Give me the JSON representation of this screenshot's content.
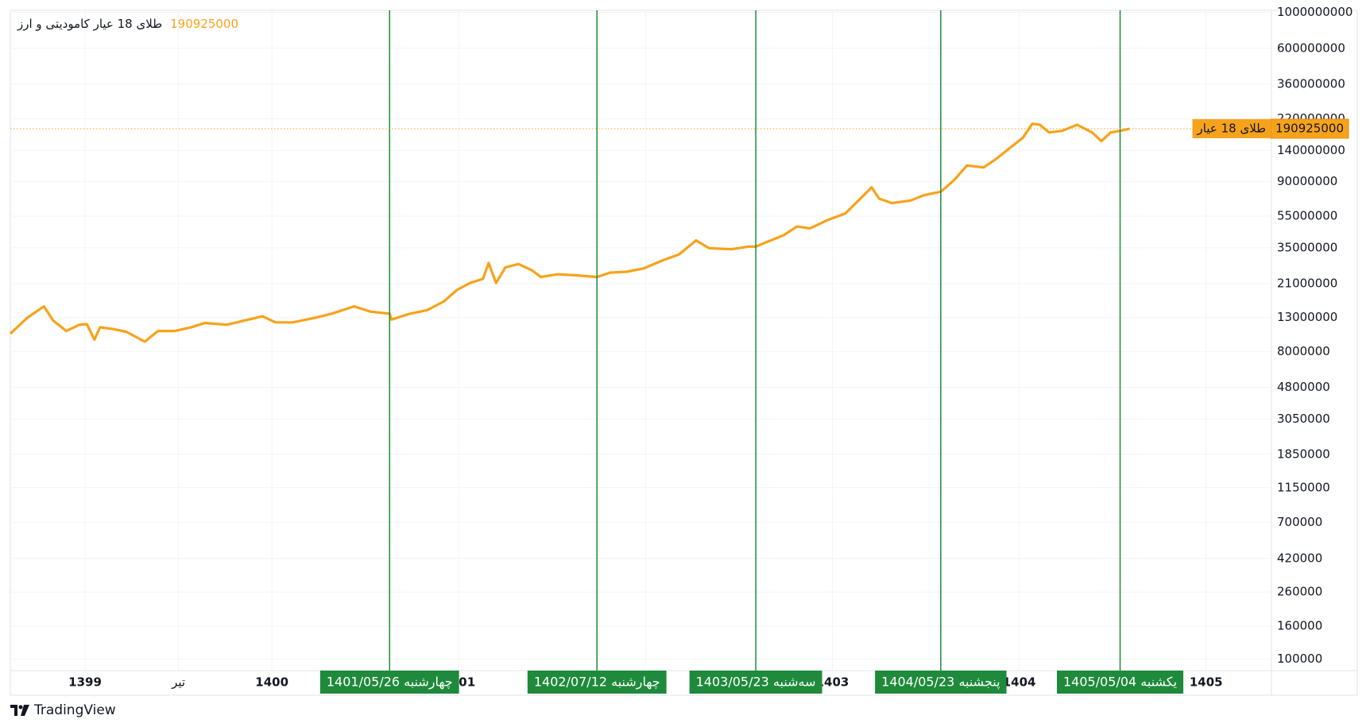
{
  "chart_data": {
    "type": "line",
    "title": "طلای 18 عیار کامودیتی و ارز",
    "log_scale": true,
    "grid": true,
    "x": [
      1398.6,
      1398.69,
      1398.78,
      1398.83,
      1398.9,
      1398.97,
      1399.01,
      1399.05,
      1399.08,
      1399.15,
      1399.22,
      1399.32,
      1399.39,
      1399.48,
      1399.57,
      1399.64,
      1399.76,
      1399.85,
      1399.95,
      1400.02,
      1400.11,
      1400.23,
      1400.32,
      1400.44,
      1400.53,
      1400.63,
      1400.64,
      1400.74,
      1400.83,
      1400.92,
      1400.99,
      1401.06,
      1401.13,
      1401.16,
      1401.2,
      1401.25,
      1401.32,
      1401.39,
      1401.44,
      1401.53,
      1401.62,
      1401.74,
      1401.81,
      1401.9,
      1401.99,
      1402.09,
      1402.18,
      1402.27,
      1402.34,
      1402.46,
      1402.55,
      1402.59,
      1402.67,
      1402.74,
      1402.81,
      1402.88,
      1402.97,
      1403.07,
      1403.14,
      1403.21,
      1403.25,
      1403.32,
      1403.42,
      1403.49,
      1403.58,
      1403.65,
      1403.72,
      1403.81,
      1403.88,
      1403.95,
      1404.02,
      1404.07,
      1404.11,
      1404.16,
      1404.23,
      1404.31,
      1404.39,
      1404.44,
      1404.49,
      1404.54,
      1404.59
    ],
    "series": [
      {
        "name": "طلای 18 عیار",
        "color": "#f7a21b",
        "values": [
          10300000,
          12900000,
          15200000,
          12400000,
          10700000,
          11700000,
          11800000,
          9460000,
          11300000,
          11000000,
          10600000,
          9200000,
          10700000,
          10700000,
          11300000,
          12000000,
          11700000,
          12400000,
          13200000,
          12100000,
          12100000,
          12900000,
          13700000,
          15200000,
          14100000,
          13700000,
          12600000,
          13700000,
          14400000,
          16300000,
          19200000,
          21200000,
          22500000,
          28200000,
          21200000,
          26500000,
          27800000,
          25500000,
          23100000,
          24000000,
          23700000,
          23100000,
          24600000,
          24900000,
          26100000,
          29200000,
          31900000,
          38900000,
          34800000,
          34300000,
          35600000,
          35600000,
          38900000,
          41900000,
          47400000,
          46200000,
          51700000,
          57100000,
          68700000,
          82800000,
          70500000,
          66200000,
          68700000,
          74000000,
          77800000,
          91400000,
          113000000,
          110000000,
          125000000,
          145000000,
          168000000,
          205000000,
          202000000,
          181000000,
          185000000,
          202000000,
          181000000,
          160000000,
          181000000,
          185000000,
          190925000
        ]
      }
    ],
    "xlim": [
      1398.6,
      1405.35
    ],
    "xticks": [
      1399,
      {
        "value": 1399.5,
        "label": "تیر"
      },
      1400,
      1401,
      1402,
      1403,
      1404,
      1405
    ],
    "ylim": [
      85000,
      1030000000
    ],
    "yticks": [
      100000,
      160000,
      260000,
      420000,
      700000,
      1150000,
      1850000,
      3050000,
      4800000,
      8000000,
      13000000,
      21000000,
      35000000,
      55000000,
      90000000,
      140000000,
      220000000,
      360000000,
      600000000,
      1000000000
    ],
    "marker_color": "#1f8a3b",
    "markers": [
      {
        "label": "چهارشنبه 1401/05/26",
        "x": 1400.63
      },
      {
        "label": "چهارشنبه 1402/07/12",
        "x": 1401.74
      },
      {
        "label": "سه‌شنبه 1403/05/23",
        "x": 1402.59
      },
      {
        "label": "پنجشنبه 1404/05/23",
        "x": 1403.58
      },
      {
        "label": "یکشنبه 1405/05/04",
        "x": 1404.54
      }
    ]
  },
  "footer": {
    "brand": "TradingView"
  }
}
